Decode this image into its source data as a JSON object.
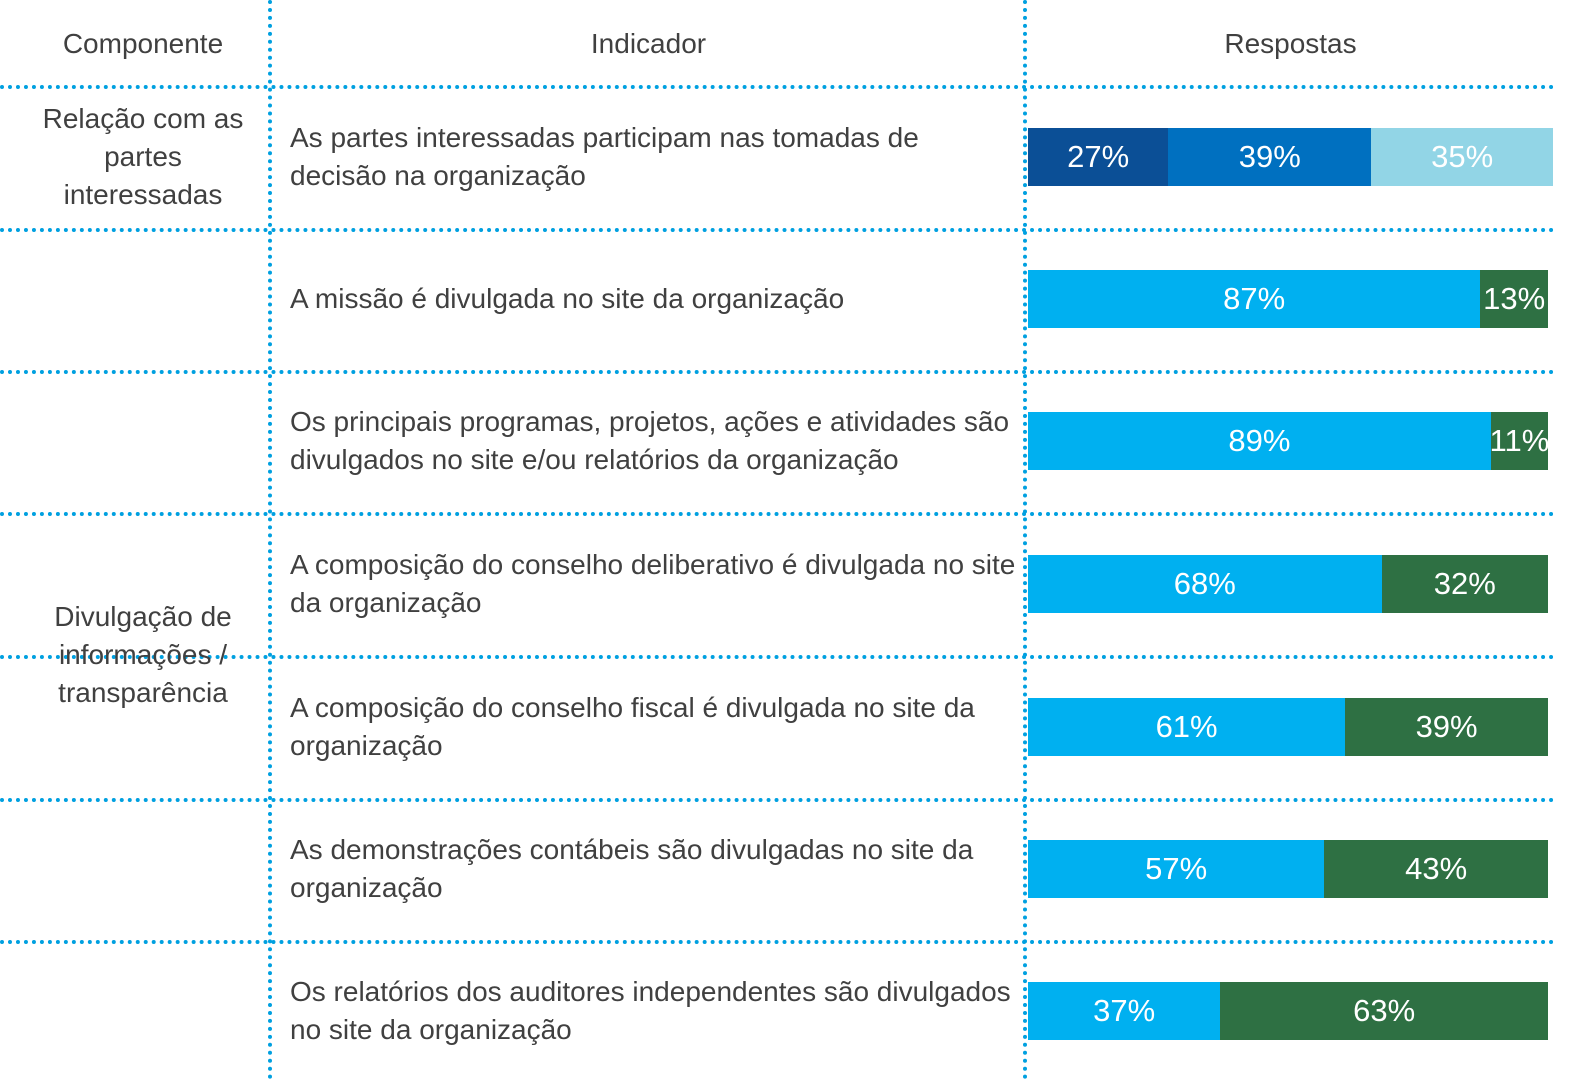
{
  "header": {
    "component": "Componente",
    "indicator": "Indicador",
    "responses": "Respostas"
  },
  "components": [
    {
      "label": "Relação com as partes interessadas",
      "rows": [
        {
          "indicator": "As partes interessadas participam nas tomadas de decisão na organização",
          "values": [
            27,
            39,
            35
          ],
          "value_labels": [
            "27%",
            "39%",
            "35%"
          ],
          "colors": [
            "#0b4f96",
            "#0070c0",
            "#92d5e6"
          ]
        }
      ]
    },
    {
      "label": "Divulgação de informações / transparência",
      "rows": [
        {
          "indicator": "A missão é divulgada no site da organização",
          "values": [
            87,
            13
          ],
          "value_labels": [
            "87%",
            "13%"
          ],
          "colors": [
            "#00b0f0",
            "#2e7043"
          ]
        },
        {
          "indicator": "Os principais programas, projetos, ações e atividades são divulgados no site e/ou relatórios da organização",
          "values": [
            89,
            11
          ],
          "value_labels": [
            "89%",
            "11%"
          ],
          "colors": [
            "#00b0f0",
            "#2e7043"
          ]
        },
        {
          "indicator": "A composição do conselho deliberativo é divulgada no site da organização",
          "values": [
            68,
            32
          ],
          "value_labels": [
            "68%",
            "32%"
          ],
          "colors": [
            "#00b0f0",
            "#2e7043"
          ]
        },
        {
          "indicator": "A composição do conselho fiscal é divulgada no site da organização",
          "values": [
            61,
            39
          ],
          "value_labels": [
            "61%",
            "39%"
          ],
          "colors": [
            "#00b0f0",
            "#2e7043"
          ]
        },
        {
          "indicator": "As demonstrações contábeis são divulgadas no site da organização",
          "values": [
            57,
            43
          ],
          "value_labels": [
            "57%",
            "43%"
          ],
          "colors": [
            "#00b0f0",
            "#2e7043"
          ]
        },
        {
          "indicator": "Os relatórios dos auditores independentes são divulgados no site da organização",
          "values": [
            37,
            63
          ],
          "value_labels": [
            "37%",
            "63%"
          ],
          "colors": [
            "#00b0f0",
            "#2e7043"
          ]
        }
      ]
    }
  ]
}
